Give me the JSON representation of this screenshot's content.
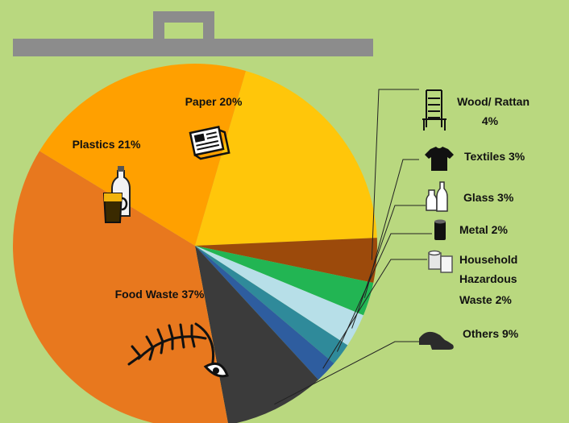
{
  "chart_data": {
    "type": "pie",
    "categories": [
      "Paper",
      "Wood/ Rattan",
      "Textiles",
      "Glass",
      "Metal",
      "Household Hazardous Waste",
      "Others",
      "Food Waste",
      "Plastics"
    ],
    "values": [
      20,
      4,
      3,
      3,
      2,
      2,
      9,
      37,
      21
    ],
    "colors": [
      "#ffc60a",
      "#9c4a0b",
      "#22b553",
      "#b7dfe8",
      "#2f8a9a",
      "#2e5d9f",
      "#3b3b3b",
      "#e8781e",
      "#ffa000"
    ],
    "label_lines": {
      "paper": [
        "Paper 20%"
      ],
      "plastics": [
        "Plastics 21%"
      ],
      "food": [
        "Food Waste 37%"
      ],
      "wood": [
        "Wood/ Rattan",
        "4%"
      ],
      "textiles": [
        "Textiles 3%"
      ],
      "glass": [
        "Glass 3%"
      ],
      "metal": [
        "Metal 2%"
      ],
      "hhw": [
        "Household",
        "Hazardous",
        "Waste 2%"
      ],
      "others": [
        "Others 9%"
      ]
    },
    "icons": {
      "paper": "newspaper-icon",
      "plastics": "bottles-icon",
      "food": "fish-bone-icon",
      "wood": "chair-icon",
      "textiles": "t-shirt-icon",
      "glass": "glass-bottles-icon",
      "metal": "can-icon",
      "hhw": "paper-towel-icon",
      "others": "shoes-icon"
    },
    "decoration": {
      "lid_color": "#8c8c8c",
      "lid_edge_color": "#6e6e6e",
      "background_color": "#b9d87f"
    },
    "legend": "none",
    "grid": false
  }
}
